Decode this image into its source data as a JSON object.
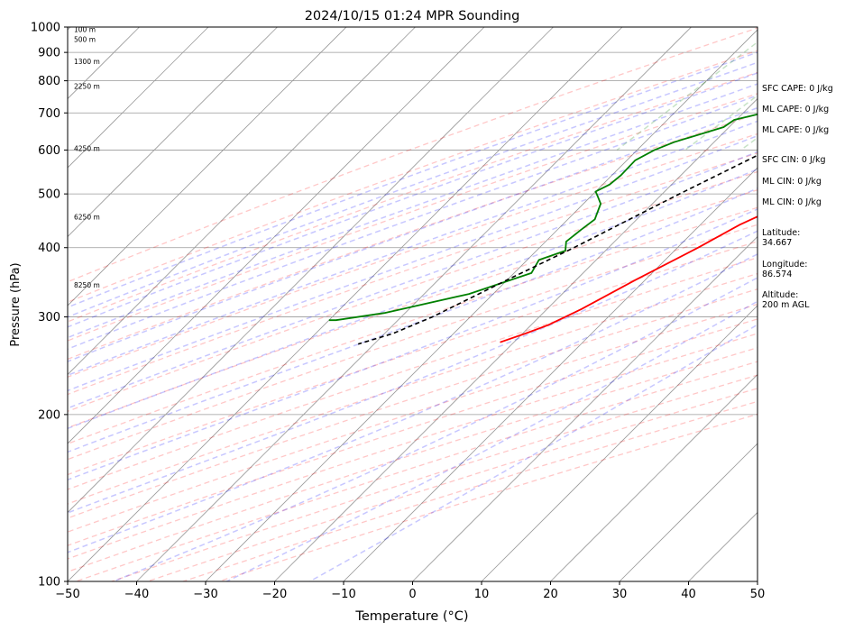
{
  "chart_data": {
    "type": "line",
    "title": "2024/10/15 01:24 MPR Sounding",
    "xlabel": "Temperature (°C)",
    "ylabel": "Pressure (hPa)",
    "xlim": [
      -50,
      50
    ],
    "ylim": [
      1000,
      100
    ],
    "y_scale": "log",
    "x_ticks": [
      -50,
      -40,
      -30,
      -20,
      -10,
      0,
      10,
      20,
      30,
      40,
      50
    ],
    "y_ticks": [
      1000,
      900,
      800,
      700,
      600,
      500,
      400,
      300,
      200,
      100
    ],
    "grid": "horizontal isobars",
    "skew": "skew-T",
    "series": [
      {
        "kind": "temperature",
        "color": "#ff0000",
        "points": [
          [
            14.5,
            1000
          ],
          [
            12.5,
            990
          ],
          [
            11.5,
            975
          ],
          [
            11.8,
            950
          ],
          [
            12.3,
            920
          ],
          [
            12.5,
            900
          ],
          [
            13.0,
            880
          ],
          [
            13.2,
            860
          ],
          [
            12.6,
            840
          ],
          [
            12.4,
            820
          ],
          [
            12.2,
            800
          ],
          [
            11.8,
            780
          ],
          [
            10.9,
            740
          ],
          [
            10.3,
            700
          ],
          [
            9.4,
            670
          ],
          [
            8.4,
            640
          ],
          [
            6.8,
            600
          ],
          [
            4.0,
            550
          ],
          [
            1.0,
            500
          ],
          [
            -4.3,
            440
          ],
          [
            -7.0,
            400
          ],
          [
            -11.4,
            350
          ],
          [
            -15.0,
            310
          ],
          [
            -17.5,
            290
          ],
          [
            -19.6,
            280
          ],
          [
            -22.0,
            270
          ]
        ]
      },
      {
        "kind": "dewpoint",
        "color": "#008000",
        "points": [
          [
            -1.0,
            1000
          ],
          [
            -5.0,
            990
          ],
          [
            -7.2,
            965
          ],
          [
            -6.2,
            955
          ],
          [
            -5.5,
            940
          ],
          [
            -1.5,
            900
          ],
          [
            0.5,
            880
          ],
          [
            1.0,
            860
          ],
          [
            1.8,
            840
          ],
          [
            3.0,
            810
          ],
          [
            -4.0,
            770
          ],
          [
            -11.8,
            750
          ],
          [
            -13.3,
            730
          ],
          [
            -17.1,
            700
          ],
          [
            -20.3,
            680
          ],
          [
            -20.8,
            660
          ],
          [
            -25.8,
            620
          ],
          [
            -27.5,
            600
          ],
          [
            -28.8,
            575
          ],
          [
            -28.7,
            540
          ],
          [
            -29.0,
            520
          ],
          [
            -30.0,
            505
          ],
          [
            -29.0,
            495
          ],
          [
            -27.5,
            480
          ],
          [
            -26.1,
            450
          ],
          [
            -26.6,
            430
          ],
          [
            -27.0,
            410
          ],
          [
            -25.8,
            395
          ],
          [
            -28.3,
            380
          ],
          [
            -27.5,
            360
          ],
          [
            -33.5,
            330
          ],
          [
            -43.0,
            305
          ],
          [
            -49.0,
            296
          ],
          [
            -50.0,
            296
          ]
        ]
      },
      {
        "kind": "parcel",
        "color": "#000000",
        "points": [
          [
            14.5,
            1000
          ],
          [
            11.0,
            950
          ],
          [
            7.6,
            900
          ],
          [
            4.3,
            850
          ],
          [
            2.8,
            820
          ],
          [
            1.0,
            800
          ],
          [
            -5.0,
            700
          ],
          [
            -11.0,
            600
          ],
          [
            -17.5,
            500
          ],
          [
            -25.0,
            400
          ],
          [
            -30.0,
            350
          ],
          [
            -35.5,
            300
          ],
          [
            -38.8,
            280
          ],
          [
            -42.3,
            268
          ]
        ]
      }
    ],
    "height_labels": [
      {
        "text": "100 m",
        "p": 990
      },
      {
        "text": "500 m",
        "p": 950
      },
      {
        "text": "1300 m",
        "p": 868
      },
      {
        "text": "2250 m",
        "p": 783
      },
      {
        "text": "4250 m",
        "p": 604
      },
      {
        "text": "6250 m",
        "p": 455
      },
      {
        "text": "8250 m",
        "p": 343
      }
    ],
    "dry_adiabat_color": "#ff0000",
    "moist_adiabat_color": "#0000ff",
    "mixing_ratio_color": "#008000"
  },
  "side_info": [
    "SFC CAPE: 0 J/kg",
    "ML CAPE: 0 J/kg",
    "ML CAPE: 0 J/kg",
    "SFC CIN: 0 J/kg",
    "ML CIN: 0 J/kg",
    "ML CIN: 0 J/kg",
    "Latitude:\n34.667",
    "Longitude:\n86.574",
    "Altitude:\n200 m AGL"
  ]
}
